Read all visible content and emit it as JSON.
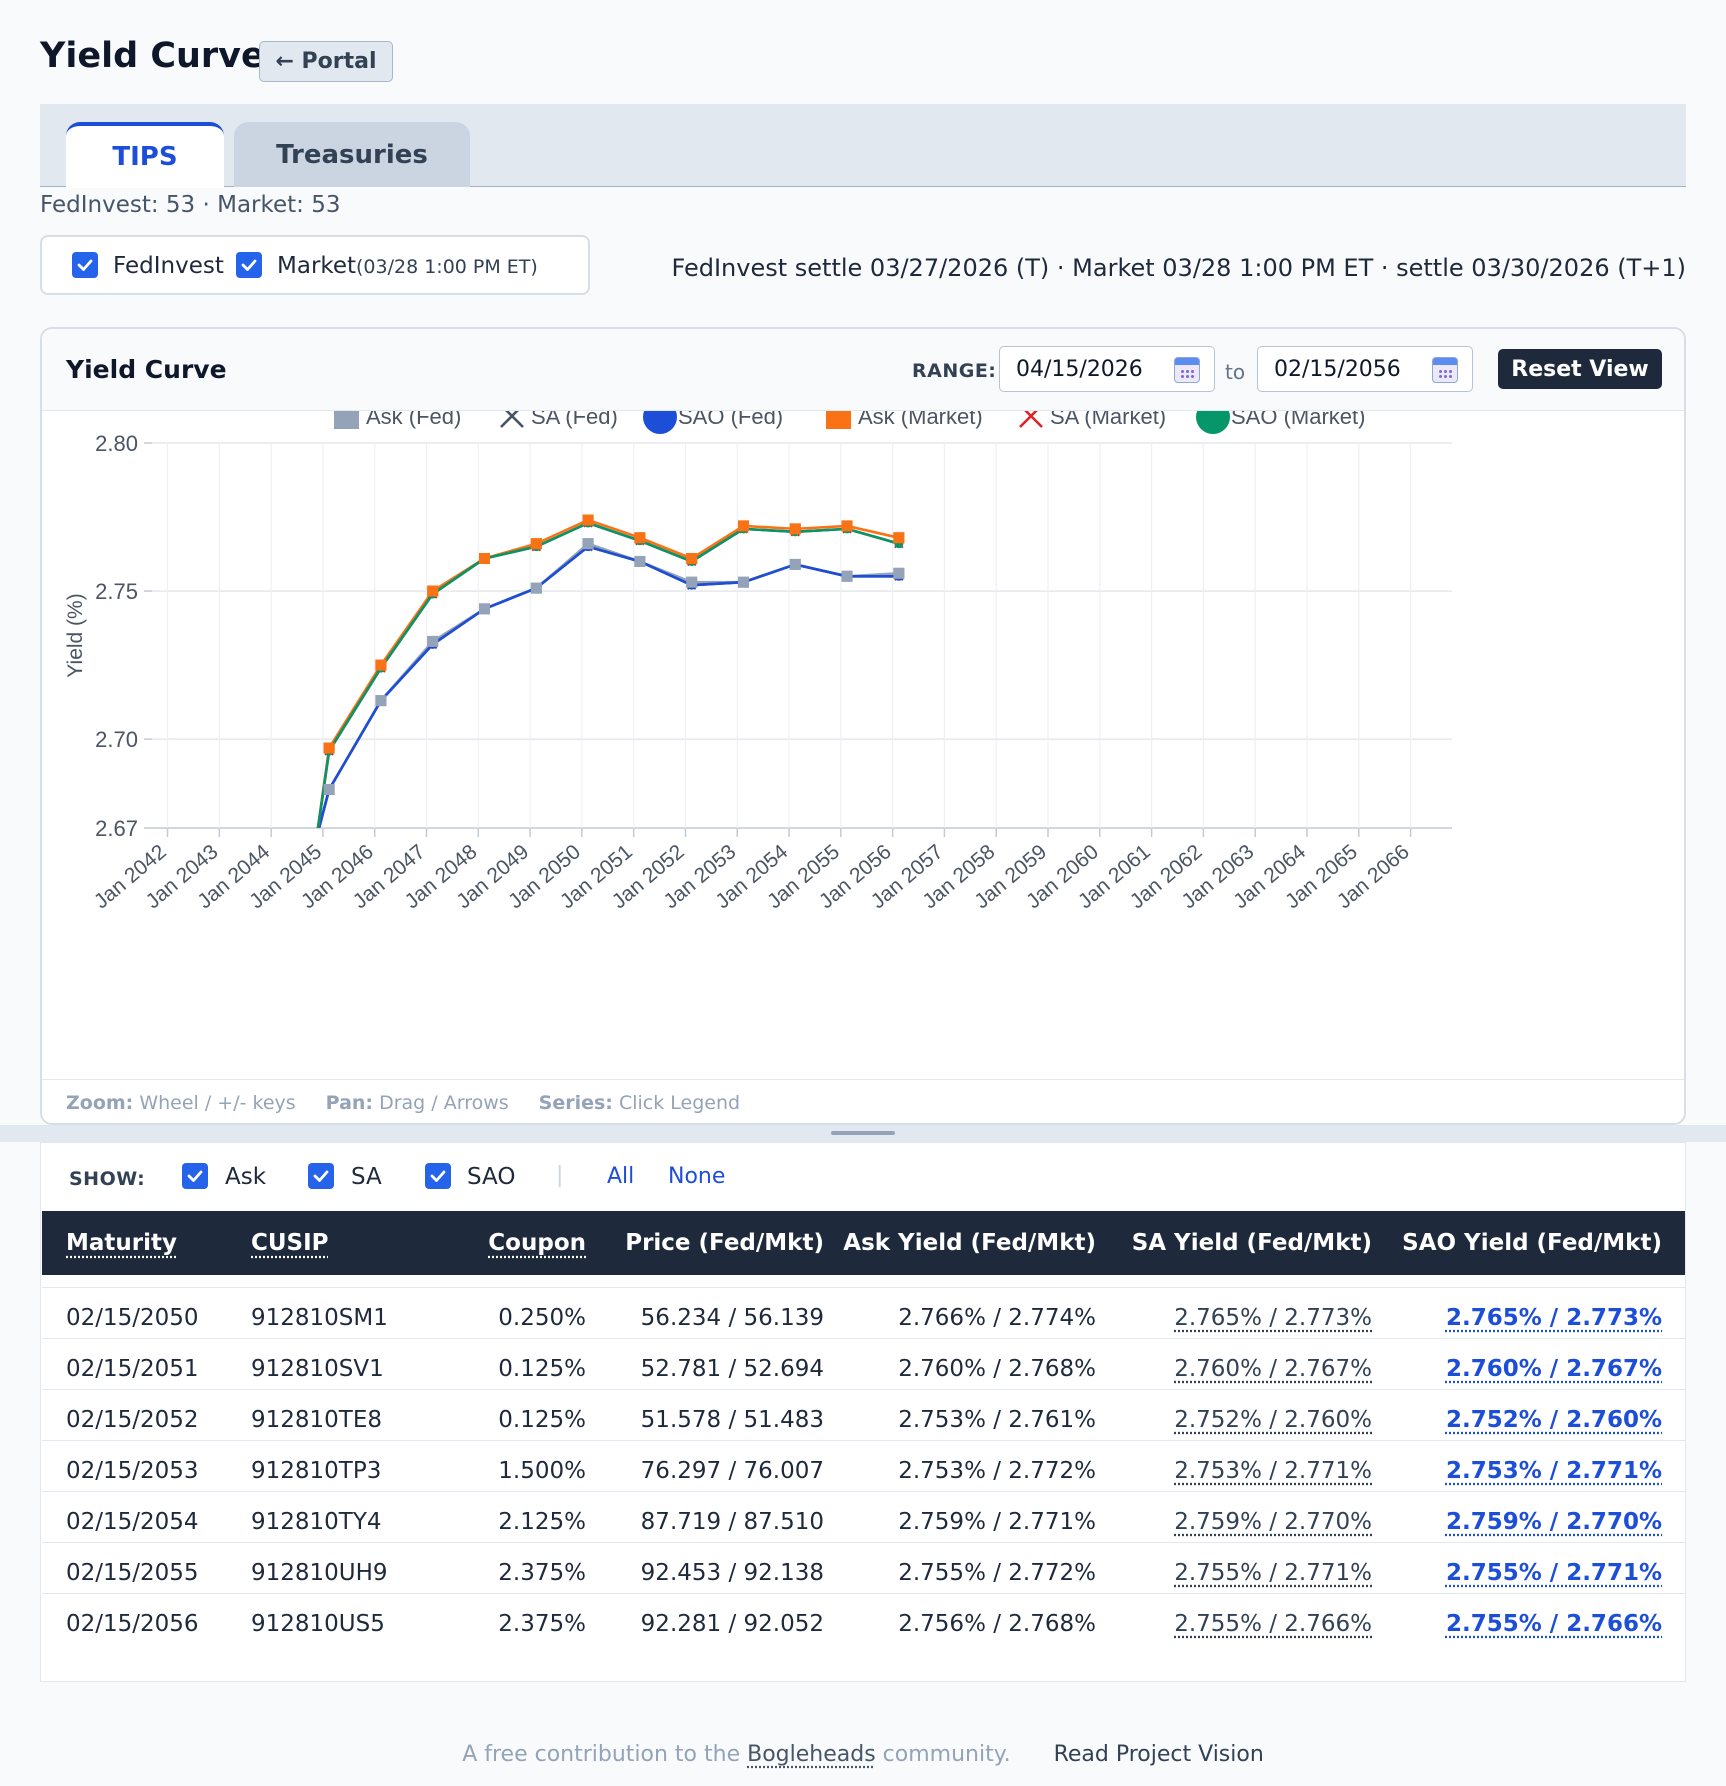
{
  "header": {
    "title": "Yield Curves",
    "portal_label": "← Portal"
  },
  "tabs": [
    {
      "label": "TIPS",
      "active": true
    },
    {
      "label": "Treasuries",
      "active": false
    }
  ],
  "counts": "FedInvest: 53 · Market: 53",
  "sources": {
    "fedinvest": {
      "label": "FedInvest",
      "checked": true
    },
    "market": {
      "label": "Market",
      "sub": "(03/28 1:00 PM ET)",
      "checked": true
    }
  },
  "settle_note": "FedInvest settle 03/27/2026 (T) · Market 03/28 1:00 PM ET · settle 03/30/2026 (T+1)",
  "chart_panel": {
    "title": "Yield Curve",
    "range_label": "RANGE:",
    "range_from": "04/15/2026",
    "range_to": "02/15/2056",
    "to_label": "to",
    "reset_label": "Reset View",
    "footer": {
      "zoom_label": "Zoom:",
      "zoom_text": "Wheel / +/- keys",
      "pan_label": "Pan:",
      "pan_text": "Drag / Arrows",
      "series_label": "Series:",
      "series_text": "Click Legend"
    }
  },
  "chart_data": {
    "type": "line",
    "title": "",
    "xlabel": "",
    "ylabel": "Yield (%)",
    "ylim": [
      2.67,
      2.8
    ],
    "yticks": [
      2.8,
      2.75,
      2.7,
      2.67
    ],
    "xticks": [
      "Jan 2042",
      "Jan 2043",
      "Jan 2044",
      "Jan 2045",
      "Jan 2046",
      "Jan 2047",
      "Jan 2048",
      "Jan 2049",
      "Jan 2050",
      "Jan 2051",
      "Jan 2052",
      "Jan 2053",
      "Jan 2054",
      "Jan 2055",
      "Jan 2056",
      "Jan 2057",
      "Jan 2058",
      "Jan 2059",
      "Jan 2060",
      "Jan 2061",
      "Jan 2062",
      "Jan 2063",
      "Jan 2064",
      "Jan 2065",
      "Jan 2066"
    ],
    "xlim": [
      2041.7,
      2066.8
    ],
    "x": [
      2044.88,
      2045.12,
      2046.12,
      2047.12,
      2048.12,
      2049.12,
      2050.12,
      2051.12,
      2052.12,
      2053.12,
      2054.12,
      2055.12,
      2056.12
    ],
    "legend_position": "top",
    "series": [
      {
        "name": "Ask (Fed)",
        "color": "#94a3b8",
        "marker": "square",
        "values": [
          2.667,
          2.683,
          2.713,
          2.733,
          2.744,
          2.751,
          2.766,
          2.76,
          2.753,
          2.753,
          2.759,
          2.755,
          2.756
        ]
      },
      {
        "name": "SA (Fed)",
        "color": "#475569",
        "marker": "x",
        "values": [
          2.667,
          2.683,
          2.713,
          2.732,
          2.744,
          2.751,
          2.765,
          2.76,
          2.752,
          2.753,
          2.759,
          2.755,
          2.755
        ]
      },
      {
        "name": "SAO (Fed)",
        "color": "#1d4ed8",
        "marker": "circle",
        "values": [
          2.667,
          2.683,
          2.713,
          2.732,
          2.744,
          2.751,
          2.765,
          2.76,
          2.752,
          2.753,
          2.759,
          2.755,
          2.755
        ]
      },
      {
        "name": "Ask (Market)",
        "color": "#f97316",
        "marker": "square",
        "values": [
          2.667,
          2.697,
          2.725,
          2.75,
          2.761,
          2.766,
          2.774,
          2.768,
          2.761,
          2.772,
          2.771,
          2.772,
          2.768
        ]
      },
      {
        "name": "SA (Market)",
        "color": "#dc2626",
        "marker": "x",
        "values": [
          2.667,
          2.696,
          2.724,
          2.749,
          2.761,
          2.765,
          2.773,
          2.767,
          2.76,
          2.771,
          2.77,
          2.771,
          2.766
        ]
      },
      {
        "name": "SAO (Market)",
        "color": "#059669",
        "marker": "circle",
        "values": [
          2.667,
          2.696,
          2.724,
          2.749,
          2.761,
          2.765,
          2.773,
          2.767,
          2.76,
          2.771,
          2.77,
          2.771,
          2.766
        ]
      }
    ]
  },
  "table": {
    "show_label": "SHOW:",
    "show_options": [
      {
        "label": "Ask",
        "checked": true
      },
      {
        "label": "SA",
        "checked": true
      },
      {
        "label": "SAO",
        "checked": true
      }
    ],
    "divider": "|",
    "all_label": "All",
    "none_label": "None",
    "columns": [
      "Maturity",
      "CUSIP",
      "Coupon",
      "Price (Fed/Mkt)",
      "Ask Yield (Fed/Mkt)",
      "SA Yield (Fed/Mkt)",
      "SAO Yield (Fed/Mkt)"
    ],
    "rows": [
      [
        "02/15/2050",
        "912810SM1",
        "0.250%",
        "56.234 / 56.139",
        "2.766% / 2.774%",
        "2.765% / 2.773%",
        "2.765% / 2.773%"
      ],
      [
        "02/15/2051",
        "912810SV1",
        "0.125%",
        "52.781 / 52.694",
        "2.760% / 2.768%",
        "2.760% / 2.767%",
        "2.760% / 2.767%"
      ],
      [
        "02/15/2052",
        "912810TE8",
        "0.125%",
        "51.578 / 51.483",
        "2.753% / 2.761%",
        "2.752% / 2.760%",
        "2.752% / 2.760%"
      ],
      [
        "02/15/2053",
        "912810TP3",
        "1.500%",
        "76.297 / 76.007",
        "2.753% / 2.772%",
        "2.753% / 2.771%",
        "2.753% / 2.771%"
      ],
      [
        "02/15/2054",
        "912810TY4",
        "2.125%",
        "87.719 / 87.510",
        "2.759% / 2.771%",
        "2.759% / 2.770%",
        "2.759% / 2.770%"
      ],
      [
        "02/15/2055",
        "912810UH9",
        "2.375%",
        "92.453 / 92.138",
        "2.755% / 2.772%",
        "2.755% / 2.771%",
        "2.755% / 2.771%"
      ],
      [
        "02/15/2056",
        "912810US5",
        "2.375%",
        "92.281 / 92.052",
        "2.756% / 2.768%",
        "2.755% / 2.766%",
        "2.755% / 2.766%"
      ]
    ]
  },
  "footer": {
    "prefix": "A free contribution to the",
    "link": "Bogleheads",
    "suffix": "community.",
    "vision": "Read Project Vision"
  }
}
